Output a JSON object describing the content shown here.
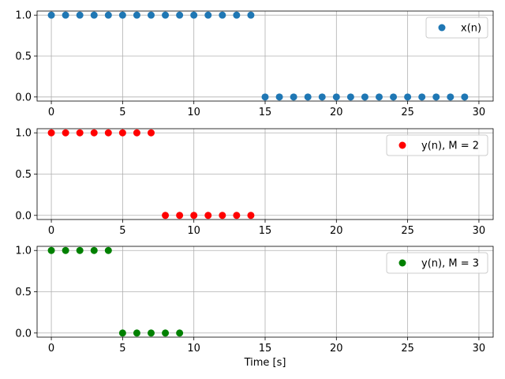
{
  "chart_data": [
    {
      "type": "scatter",
      "series": [
        {
          "name": "x(n)",
          "color": "#1f77b4",
          "x": [
            0,
            1,
            2,
            3,
            4,
            5,
            6,
            7,
            8,
            9,
            10,
            11,
            12,
            13,
            14,
            15,
            16,
            17,
            18,
            19,
            20,
            21,
            22,
            23,
            24,
            25,
            26,
            27,
            28,
            29
          ],
          "y": [
            1,
            1,
            1,
            1,
            1,
            1,
            1,
            1,
            1,
            1,
            1,
            1,
            1,
            1,
            1,
            0,
            0,
            0,
            0,
            0,
            0,
            0,
            0,
            0,
            0,
            0,
            0,
            0,
            0,
            0
          ]
        }
      ],
      "xlim": [
        -1,
        31
      ],
      "ylim": [
        -0.05,
        1.05
      ],
      "xticks": [
        0,
        5,
        10,
        15,
        20,
        25,
        30
      ],
      "yticks": [
        0.0,
        0.5,
        1.0
      ],
      "ytick_labels": [
        "0.0",
        "0.5",
        "1.0"
      ],
      "grid": true,
      "legend_position": "upper right",
      "xlabel": ""
    },
    {
      "type": "scatter",
      "series": [
        {
          "name": "y(n), M = 2",
          "color": "#ff0000",
          "x": [
            0,
            1,
            2,
            3,
            4,
            5,
            6,
            7,
            8,
            9,
            10,
            11,
            12,
            13,
            14
          ],
          "y": [
            1,
            1,
            1,
            1,
            1,
            1,
            1,
            1,
            0,
            0,
            0,
            0,
            0,
            0,
            0
          ]
        }
      ],
      "xlim": [
        -1,
        31
      ],
      "ylim": [
        -0.05,
        1.05
      ],
      "xticks": [
        0,
        5,
        10,
        15,
        20,
        25,
        30
      ],
      "yticks": [
        0.0,
        0.5,
        1.0
      ],
      "ytick_labels": [
        "0.0",
        "0.5",
        "1.0"
      ],
      "grid": true,
      "legend_position": "upper right",
      "xlabel": ""
    },
    {
      "type": "scatter",
      "series": [
        {
          "name": "y(n), M = 3",
          "color": "#008000",
          "x": [
            0,
            1,
            2,
            3,
            4,
            5,
            6,
            7,
            8,
            9
          ],
          "y": [
            1,
            1,
            1,
            1,
            1,
            0,
            0,
            0,
            0,
            0
          ]
        }
      ],
      "xlim": [
        -1,
        31
      ],
      "ylim": [
        -0.05,
        1.05
      ],
      "xticks": [
        0,
        5,
        10,
        15,
        20,
        25,
        30
      ],
      "yticks": [
        0.0,
        0.5,
        1.0
      ],
      "ytick_labels": [
        "0.0",
        "0.5",
        "1.0"
      ],
      "grid": true,
      "legend_position": "upper right",
      "xlabel": "Time [s]"
    }
  ]
}
